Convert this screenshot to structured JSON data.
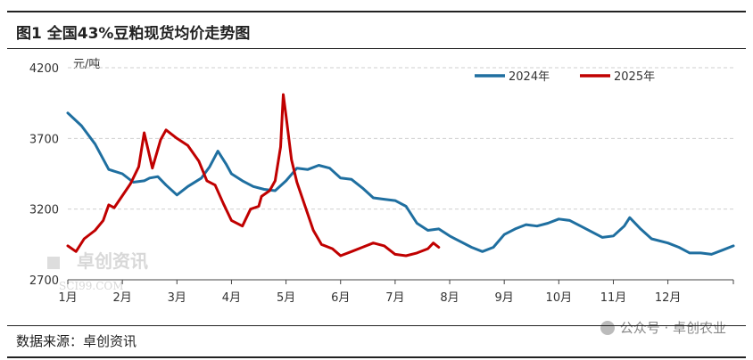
{
  "header": {
    "title": "图1 全国43%豆粕现货均价走势图"
  },
  "footer": {
    "source": "数据来源：卓创资讯"
  },
  "watermarks": {
    "logo_text": "卓创资讯",
    "logo_sub": "SCI99.COM",
    "wechat": "公众号 · 卓创农业"
  },
  "chart_data": {
    "type": "line",
    "unit": "元/吨",
    "ylim": [
      2700,
      4200
    ],
    "yticks": [
      2700,
      3200,
      3700,
      4200
    ],
    "xticks": [
      "1月",
      "2月",
      "3月",
      "4月",
      "5月",
      "6月",
      "7月",
      "8月",
      "9月",
      "10月",
      "11月",
      "12月"
    ],
    "grid": "horizontal dashed",
    "legend_position": "top-right",
    "colors": {
      "2024年": "#1f6fa0",
      "2025年": "#c00000"
    },
    "series": [
      {
        "name": "2024年",
        "points": [
          [
            1,
            3880
          ],
          [
            1.25,
            3790
          ],
          [
            1.5,
            3660
          ],
          [
            1.75,
            3480
          ],
          [
            2,
            3450
          ],
          [
            2.2,
            3390
          ],
          [
            2.4,
            3400
          ],
          [
            2.5,
            3420
          ],
          [
            2.65,
            3430
          ],
          [
            2.8,
            3370
          ],
          [
            3,
            3300
          ],
          [
            3.2,
            3360
          ],
          [
            3.45,
            3420
          ],
          [
            3.6,
            3500
          ],
          [
            3.75,
            3610
          ],
          [
            3.9,
            3520
          ],
          [
            4,
            3450
          ],
          [
            4.2,
            3400
          ],
          [
            4.4,
            3360
          ],
          [
            4.6,
            3340
          ],
          [
            4.8,
            3330
          ],
          [
            5,
            3400
          ],
          [
            5.2,
            3490
          ],
          [
            5.4,
            3480
          ],
          [
            5.6,
            3510
          ],
          [
            5.8,
            3490
          ],
          [
            6,
            3420
          ],
          [
            6.2,
            3410
          ],
          [
            6.4,
            3350
          ],
          [
            6.6,
            3280
          ],
          [
            6.8,
            3270
          ],
          [
            7,
            3260
          ],
          [
            7.2,
            3220
          ],
          [
            7.4,
            3100
          ],
          [
            7.6,
            3050
          ],
          [
            7.8,
            3060
          ],
          [
            8,
            3010
          ],
          [
            8.2,
            2970
          ],
          [
            8.4,
            2930
          ],
          [
            8.6,
            2900
          ],
          [
            8.8,
            2930
          ],
          [
            9,
            3020
          ],
          [
            9.2,
            3060
          ],
          [
            9.4,
            3090
          ],
          [
            9.6,
            3080
          ],
          [
            9.8,
            3100
          ],
          [
            10,
            3130
          ],
          [
            10.2,
            3120
          ],
          [
            10.4,
            3080
          ],
          [
            10.6,
            3040
          ],
          [
            10.8,
            3000
          ],
          [
            11,
            3010
          ],
          [
            11.2,
            3080
          ],
          [
            11.3,
            3140
          ],
          [
            11.5,
            3060
          ],
          [
            11.7,
            2990
          ],
          [
            12,
            2960
          ],
          [
            12.2,
            2930
          ],
          [
            12.4,
            2890
          ],
          [
            12.6,
            2890
          ],
          [
            12.8,
            2880
          ],
          [
            13,
            2910
          ],
          [
            13.2,
            2940
          ]
        ]
      },
      {
        "name": "2025年",
        "points": [
          [
            1,
            2940
          ],
          [
            1.15,
            2900
          ],
          [
            1.3,
            2990
          ],
          [
            1.5,
            3050
          ],
          [
            1.65,
            3120
          ],
          [
            1.75,
            3230
          ],
          [
            1.85,
            3210
          ],
          [
            2.15,
            3380
          ],
          [
            2.3,
            3500
          ],
          [
            2.4,
            3740
          ],
          [
            2.55,
            3490
          ],
          [
            2.7,
            3690
          ],
          [
            2.8,
            3760
          ],
          [
            3,
            3700
          ],
          [
            3.2,
            3650
          ],
          [
            3.4,
            3540
          ],
          [
            3.55,
            3400
          ],
          [
            3.7,
            3370
          ],
          [
            3.85,
            3240
          ],
          [
            4,
            3120
          ],
          [
            4.2,
            3080
          ],
          [
            4.35,
            3200
          ],
          [
            4.5,
            3220
          ],
          [
            4.55,
            3290
          ],
          [
            4.7,
            3330
          ],
          [
            4.8,
            3400
          ],
          [
            4.9,
            3640
          ],
          [
            4.95,
            4010
          ],
          [
            5,
            3860
          ],
          [
            5.1,
            3550
          ],
          [
            5.2,
            3390
          ],
          [
            5.35,
            3220
          ],
          [
            5.5,
            3050
          ],
          [
            5.65,
            2950
          ],
          [
            5.85,
            2920
          ],
          [
            6,
            2870
          ],
          [
            6.2,
            2900
          ],
          [
            6.4,
            2930
          ],
          [
            6.6,
            2960
          ],
          [
            6.8,
            2940
          ],
          [
            7,
            2880
          ],
          [
            7.2,
            2870
          ],
          [
            7.4,
            2890
          ],
          [
            7.6,
            2920
          ],
          [
            7.7,
            2960
          ],
          [
            7.8,
            2930
          ]
        ]
      }
    ]
  }
}
